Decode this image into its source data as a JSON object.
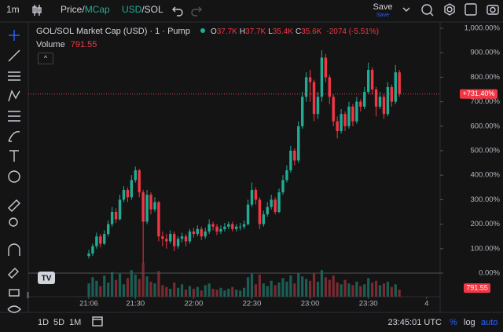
{
  "toolbar": {
    "interval": "1m",
    "price_mode": {
      "first": "Price/",
      "second": "MCap"
    },
    "currency": {
      "first": "USD",
      "second": "/SOL"
    },
    "save": "Save",
    "save_sub": "Save"
  },
  "legend": {
    "title": "GOL/SOL Market Cap (USD) · 1 · Pump",
    "ohlc": [
      {
        "key": "O",
        "value": "37.7K"
      },
      {
        "key": "H",
        "value": "37.7K"
      },
      {
        "key": "L",
        "value": "35.4K"
      },
      {
        "key": "C",
        "value": "35.6K"
      }
    ],
    "change": "-2074 (-5.51%)",
    "volume_label": "Volume",
    "volume_value": "791.55"
  },
  "bottom_bar": {
    "ranges": [
      "1D",
      "5D",
      "1M"
    ],
    "clock": "23:45:01 UTC",
    "percent": "%",
    "log": "log",
    "auto": "auto"
  },
  "chart_data": {
    "type": "candlestick",
    "up_color": "#22ab94",
    "down_color": "#f23645",
    "open": [
      70,
      80,
      110,
      150,
      120,
      160,
      200,
      250,
      220,
      300,
      340,
      310,
      380,
      420,
      330,
      210,
      320,
      260,
      290,
      150,
      140,
      130,
      160,
      110,
      140,
      150,
      130,
      170,
      160,
      180,
      150,
      170,
      200,
      190,
      170,
      180,
      190,
      200,
      180,
      190,
      190,
      200,
      280,
      340,
      300,
      200,
      240,
      270,
      300,
      250,
      330,
      380,
      420,
      500,
      460,
      600,
      720,
      800,
      780,
      650,
      720,
      880,
      800,
      720,
      620,
      580,
      650,
      600,
      680,
      620,
      700,
      680,
      740,
      830,
      750,
      680,
      720,
      650,
      760,
      700,
      820
    ],
    "high": [
      95,
      120,
      165,
      160,
      175,
      215,
      270,
      265,
      320,
      355,
      350,
      400,
      435,
      425,
      340,
      340,
      330,
      310,
      295,
      170,
      160,
      175,
      170,
      150,
      165,
      160,
      180,
      185,
      195,
      190,
      185,
      220,
      210,
      200,
      195,
      205,
      210,
      210,
      200,
      205,
      215,
      300,
      370,
      350,
      310,
      255,
      290,
      320,
      310,
      345,
      400,
      440,
      520,
      510,
      620,
      740,
      820,
      830,
      790,
      740,
      910,
      895,
      810,
      730,
      640,
      670,
      660,
      700,
      690,
      720,
      710,
      760,
      860,
      840,
      760,
      740,
      730,
      780,
      770,
      850,
      830
    ],
    "low": [
      60,
      70,
      100,
      105,
      115,
      150,
      190,
      205,
      215,
      290,
      290,
      300,
      370,
      310,
      40,
      200,
      240,
      250,
      130,
      110,
      100,
      120,
      90,
      100,
      125,
      110,
      120,
      145,
      150,
      135,
      140,
      160,
      175,
      155,
      160,
      170,
      180,
      170,
      170,
      175,
      180,
      195,
      270,
      280,
      180,
      190,
      230,
      260,
      240,
      245,
      320,
      370,
      410,
      440,
      450,
      590,
      700,
      700,
      620,
      630,
      700,
      780,
      690,
      600,
      550,
      570,
      580,
      590,
      600,
      610,
      660,
      670,
      730,
      730,
      640,
      670,
      630,
      640,
      680,
      690,
      720
    ],
    "close": [
      80,
      110,
      150,
      120,
      160,
      200,
      250,
      220,
      300,
      340,
      310,
      380,
      420,
      330,
      210,
      320,
      260,
      290,
      150,
      140,
      130,
      160,
      110,
      140,
      150,
      130,
      170,
      160,
      180,
      150,
      170,
      200,
      190,
      170,
      180,
      190,
      200,
      180,
      190,
      190,
      200,
      280,
      340,
      300,
      200,
      240,
      270,
      300,
      250,
      330,
      380,
      420,
      500,
      460,
      600,
      720,
      800,
      780,
      650,
      720,
      880,
      800,
      720,
      620,
      580,
      650,
      600,
      680,
      620,
      700,
      680,
      740,
      830,
      750,
      680,
      720,
      650,
      760,
      700,
      820,
      731.4
    ],
    "volume": [
      1500,
      2200,
      1800,
      1200,
      2400,
      1600,
      2800,
      1900,
      2600,
      1400,
      2100,
      3000,
      2500,
      2000,
      3800,
      2300,
      1700,
      1500,
      2900,
      1300,
      1100,
      900,
      1600,
      1000,
      1400,
      800,
      1200,
      900,
      1100,
      700,
      1300,
      1500,
      900,
      800,
      1000,
      700,
      900,
      1100,
      800,
      700,
      1000,
      2200,
      2600,
      1400,
      2500,
      1500,
      1200,
      1800,
      1300,
      1600,
      2100,
      1700,
      2400,
      1500,
      2700,
      2300,
      2000,
      1800,
      2600,
      1700,
      3000,
      2200,
      1900,
      2400,
      1600,
      1400,
      1900,
      1500,
      1300,
      1700,
      1200,
      1400,
      2100,
      1600,
      1800,
      1300,
      1500,
      1700,
      1100,
      1400,
      791.55
    ],
    "ylim": [
      0,
      1000
    ],
    "volume_ylim": [
      0,
      4000
    ],
    "yticks": [
      {
        "value": 0,
        "label": "0.00%"
      },
      {
        "value": 100,
        "label": "100.00%"
      },
      {
        "value": 200,
        "label": "200.00%"
      },
      {
        "value": 300,
        "label": "300.00%"
      },
      {
        "value": 400,
        "label": "400.00%"
      },
      {
        "value": 500,
        "label": "500.00%"
      },
      {
        "value": 600,
        "label": "600.00%"
      },
      {
        "value": 700,
        "label": "700.00%"
      },
      {
        "value": 800,
        "label": "800.00%"
      },
      {
        "value": 900,
        "label": "900.00%"
      },
      {
        "value": 1000,
        "label": "1,000.00%"
      }
    ],
    "xticks": [
      {
        "value": 0,
        "label": "21:06"
      },
      {
        "value": 12,
        "label": "21:30"
      },
      {
        "value": 27,
        "label": "22:00"
      },
      {
        "value": 42,
        "label": "22:30"
      },
      {
        "value": 57,
        "label": "23:00"
      },
      {
        "value": 72,
        "label": "23:30"
      },
      {
        "value": 87,
        "label": "4"
      }
    ],
    "last_price": {
      "value": 731.4,
      "label": "+731.40%"
    }
  }
}
